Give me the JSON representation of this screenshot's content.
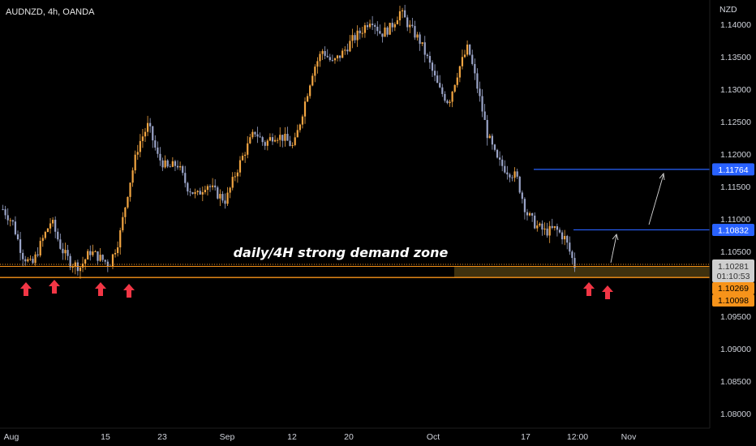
{
  "header": {
    "symbol_title": "AUDNZD, 4h, OANDA"
  },
  "price_axis": {
    "currency": "NZD",
    "ticks": [
      "1.14000",
      "1.13500",
      "1.13000",
      "1.12500",
      "1.12000",
      "1.11500",
      "1.11000",
      "1.10500",
      "1.09500",
      "1.09000",
      "1.08500",
      "1.08000"
    ],
    "tick_values": [
      1.14,
      1.135,
      1.13,
      1.125,
      1.12,
      1.115,
      1.11,
      1.105,
      1.095,
      1.09,
      1.085,
      1.08
    ]
  },
  "time_axis": {
    "labels": [
      "Aug",
      "15",
      "23",
      "Sep",
      "12",
      "20",
      "Oct",
      "17",
      "12:00",
      "Nov"
    ]
  },
  "annotation": {
    "zone_label": "daily/4H strong demand zone"
  },
  "badges": {
    "target_high": "1.11764",
    "target_low": "1.10832",
    "current_price": "1.10281",
    "countdown": "01:10:53",
    "zone_top": "1.10269",
    "zone_bottom": "1.10098"
  },
  "colors": {
    "background": "#000000",
    "candle_up": "#f2a541",
    "candle_down": "#9aa4c8",
    "zone_line": "#f7931a",
    "target_line": "#2962ff",
    "arrow_red": "#f23645"
  },
  "chart_data": {
    "type": "candlestick",
    "title": "AUDNZD, 4h, OANDA",
    "ylabel": "NZD",
    "ylim": [
      1.0775,
      1.142
    ],
    "x_labels": [
      "Aug",
      "15",
      "23",
      "Sep",
      "12",
      "20",
      "Oct",
      "17",
      "12:00",
      "Nov"
    ],
    "price_path_approx": [
      1.1115,
      1.1095,
      1.1045,
      1.1028,
      1.1065,
      1.1098,
      1.1055,
      1.1032,
      1.1026,
      1.105,
      1.104,
      1.103,
      1.107,
      1.115,
      1.1215,
      1.1245,
      1.1195,
      1.1178,
      1.1185,
      1.115,
      1.1135,
      1.1155,
      1.114,
      1.1128,
      1.117,
      1.1205,
      1.1235,
      1.1215,
      1.123,
      1.1225,
      1.121,
      1.127,
      1.133,
      1.136,
      1.134,
      1.1355,
      1.1375,
      1.139,
      1.141,
      1.1385,
      1.1395,
      1.142,
      1.1395,
      1.1375,
      1.134,
      1.13,
      1.128,
      1.133,
      1.1365,
      1.13,
      1.123,
      1.119,
      1.1175,
      1.1165,
      1.111,
      1.109,
      1.108,
      1.1085,
      1.107,
      1.1028
    ],
    "current_price": 1.10281,
    "demand_zone": {
      "label": "daily/4H strong demand zone",
      "top": 1.10269,
      "bottom": 1.10098
    },
    "targets": [
      1.10832,
      1.11764
    ],
    "annotations": [
      "up arrows marking touches of the demand zone",
      "upward arrows projecting toward targets"
    ]
  }
}
